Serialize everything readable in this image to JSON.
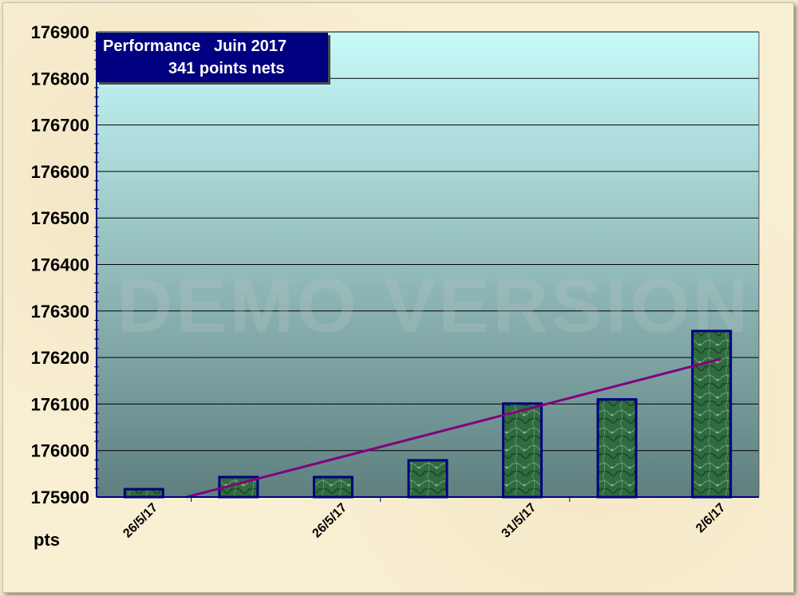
{
  "watermark": "DEMO VERSION",
  "title_box": {
    "line1": "Performance   Juin 2017",
    "line2": "341 points nets"
  },
  "unit_label": "pts",
  "colors": {
    "plot_top": "#c8fafa",
    "plot_bottom": "#5f7f7f",
    "bar_fill": "#2f6b3e",
    "bar_border": "#000080",
    "trend_line": "#800080",
    "title_bg": "#000080"
  },
  "chart_data": {
    "type": "bar",
    "ylim": [
      175900,
      176900
    ],
    "y_ticks": [
      176900,
      176800,
      176700,
      176600,
      176500,
      176400,
      176300,
      176200,
      176100,
      176000,
      175900
    ],
    "x_tick_labels": [
      "26/5/17",
      "26/5/17",
      "31/5/17",
      "2/6/17"
    ],
    "values": [
      175917,
      175943,
      175943,
      175979,
      176101,
      176110,
      176257
    ],
    "trend": {
      "start": 175900,
      "end": 176197
    },
    "grid": true,
    "legend": "none"
  }
}
